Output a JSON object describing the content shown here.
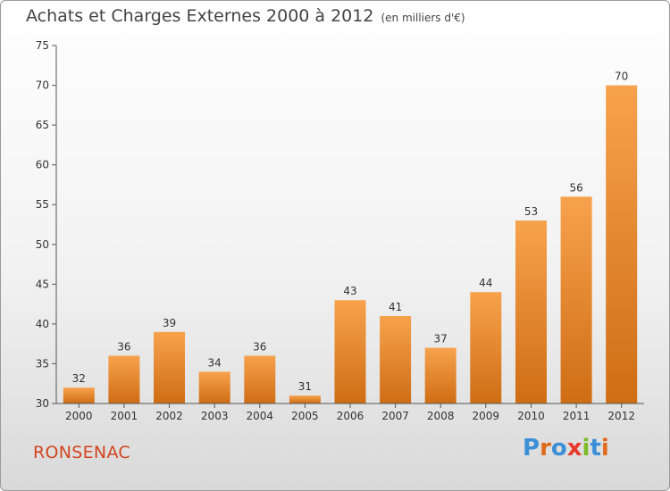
{
  "header": {
    "title": "Achats et Charges Externes 2000 à 2012",
    "unit": "(en milliers d'€)"
  },
  "footer": {
    "commune": "RONSENAC",
    "logo_text": "Proxiti",
    "logo_colors": [
      "#3b8fd6",
      "#e06a1b",
      "#3b8fd6",
      "#e8392b",
      "#7dbb2a",
      "#3b8fd6",
      "#e06a1b"
    ]
  },
  "colors": {
    "bar_light": "#f7a24d",
    "bar_dark": "#cf6d14",
    "axis": "#555555",
    "tick_text": "#333333"
  },
  "chart_data": {
    "type": "bar",
    "title": "Achats et Charges Externes 2000 à 2012",
    "xlabel": "",
    "ylabel": "",
    "categories": [
      "2000",
      "2001",
      "2002",
      "2003",
      "2004",
      "2005",
      "2006",
      "2007",
      "2008",
      "2009",
      "2010",
      "2011",
      "2012"
    ],
    "values": [
      32,
      36,
      39,
      34,
      36,
      31,
      43,
      41,
      37,
      44,
      53,
      56,
      70
    ],
    "ylim": [
      30,
      75
    ],
    "yticks": [
      30,
      35,
      40,
      45,
      50,
      55,
      60,
      65,
      70,
      75
    ],
    "grid": false,
    "legend": "none"
  }
}
